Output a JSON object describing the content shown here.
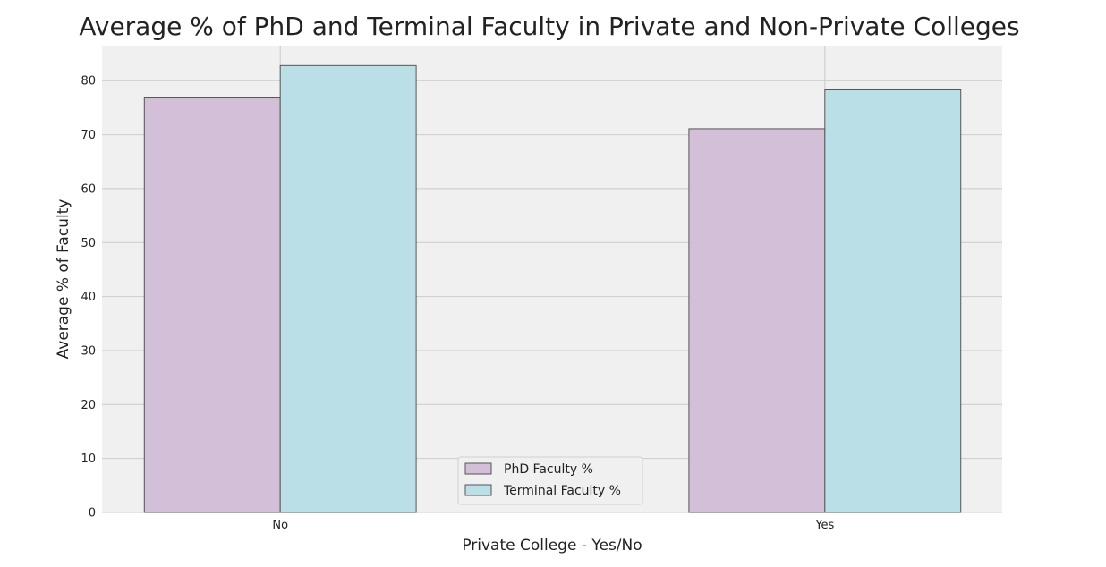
{
  "chart_data": {
    "type": "bar",
    "title": "Average % of PhD and Terminal Faculty in Private and Non-Private Colleges",
    "xlabel": "Private College - Yes/No",
    "ylabel": "Average % of Faculty",
    "categories": [
      "No",
      "Yes"
    ],
    "series": [
      {
        "name": "PhD Faculty %",
        "values": [
          76.8,
          71.1
        ],
        "color": "#d4bfd9"
      },
      {
        "name": "Terminal Faculty %",
        "values": [
          82.8,
          78.3
        ],
        "color": "#bbdfe6"
      }
    ],
    "ylim": [
      0,
      86.5
    ],
    "yticks": [
      0,
      10,
      20,
      30,
      40,
      50,
      60,
      70,
      80
    ],
    "grid": true,
    "legend_position": "bottom-center",
    "colors": {
      "background": "#f0f0f0",
      "grid": "#cbcbcb",
      "edge": "#555555"
    }
  }
}
